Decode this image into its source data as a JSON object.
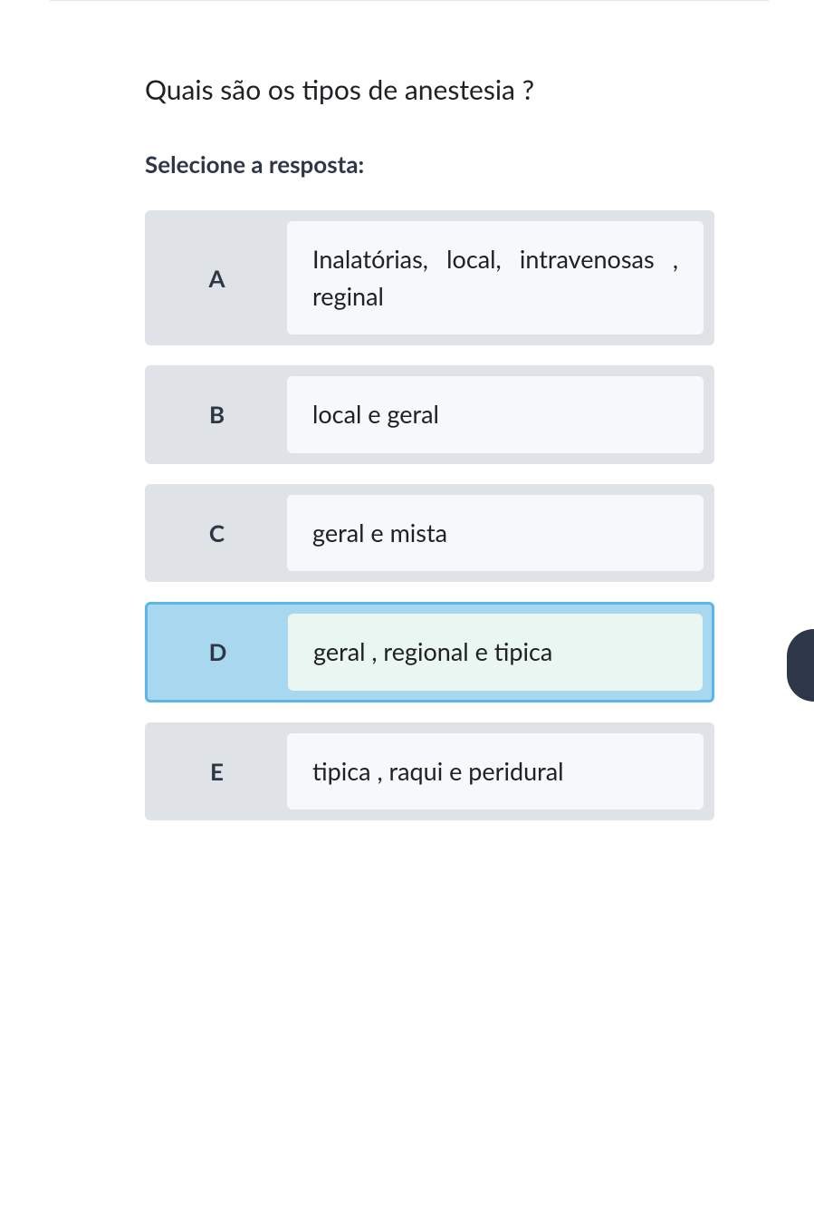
{
  "question": {
    "text": "Quais são os tipos de anestesia ?",
    "instruction": "Selecione a resposta:"
  },
  "options": [
    {
      "letter": "A",
      "text": "Inalatórias, local, intravenosas , reginal",
      "selected": false
    },
    {
      "letter": "B",
      "text": "local e geral",
      "selected": false
    },
    {
      "letter": "C",
      "text": "geral e mista",
      "selected": false
    },
    {
      "letter": "D",
      "text": "geral , regional e tipica",
      "selected": true
    },
    {
      "letter": "E",
      "text": "tipica , raqui e peridural",
      "selected": false
    }
  ],
  "colors": {
    "background": "#ffffff",
    "option_bg": "#dfe3e8",
    "option_text_bg": "#f5f9fb",
    "selected_bg": "#a8d8f0",
    "selected_border": "#5bb5e8",
    "selected_text_bg": "#eaf6f1",
    "text_primary": "#202124",
    "text_heading": "#2d3748"
  }
}
